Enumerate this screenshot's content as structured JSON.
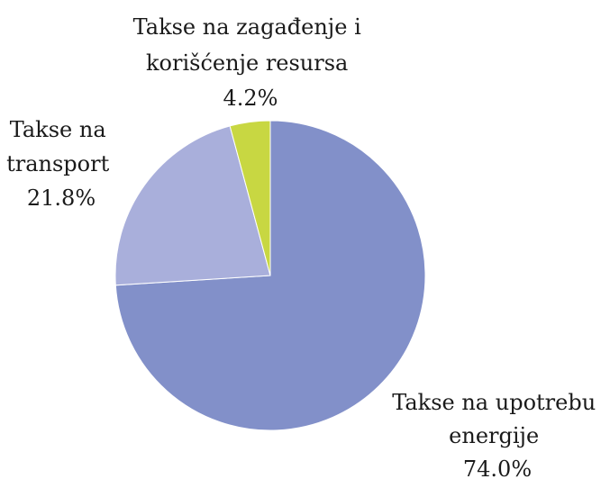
{
  "chart_data": {
    "type": "pie",
    "start_angle_deg": 0,
    "direction": "clockwise",
    "slices": [
      {
        "label_lines": [
          "Takse na upotrebu",
          "energije"
        ],
        "value": 74.0,
        "value_label": "74.0%",
        "color": "#8290c9"
      },
      {
        "label_lines": [
          "Takse na",
          "transport"
        ],
        "value": 21.8,
        "value_label": "21.8%",
        "color": "#a9afdb"
      },
      {
        "label_lines": [
          "Takse na zagađenje i",
          "korišćenje resursa"
        ],
        "value": 4.2,
        "value_label": "4.2%",
        "color": "#c8d742"
      }
    ]
  }
}
